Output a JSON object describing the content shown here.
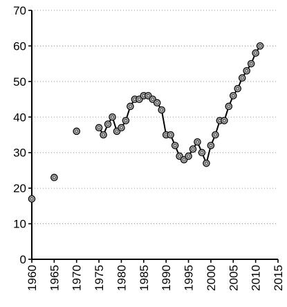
{
  "chart_data": {
    "type": "line",
    "title": "",
    "xlabel": "",
    "ylabel": "",
    "xlim": [
      1960,
      2015
    ],
    "ylim": [
      0,
      70
    ],
    "x_ticks": [
      "1960",
      "1965",
      "1970",
      "1975",
      "1980",
      "1985",
      "1990",
      "1995",
      "2000",
      "2005",
      "2010",
      "2015"
    ],
    "y_ticks": [
      "0",
      "10",
      "20",
      "30",
      "40",
      "50",
      "60",
      "70"
    ],
    "grid": "horizontal dotted",
    "legend": "none",
    "line_color": "#000000",
    "marker_fill": "#bdbdbd",
    "series": [
      {
        "isolated_points": [
          [
            1960,
            17
          ],
          [
            1965,
            23
          ],
          [
            1970,
            36
          ]
        ],
        "connected_points": [
          [
            1975,
            37
          ],
          [
            1976,
            35
          ],
          [
            1977,
            38
          ],
          [
            1978,
            40
          ],
          [
            1979,
            36
          ],
          [
            1980,
            37
          ],
          [
            1981,
            39
          ],
          [
            1982,
            43
          ],
          [
            1983,
            45
          ],
          [
            1984,
            45
          ],
          [
            1985,
            46
          ],
          [
            1986,
            46
          ],
          [
            1987,
            45
          ],
          [
            1988,
            44
          ],
          [
            1989,
            42
          ],
          [
            1990,
            35
          ],
          [
            1991,
            35
          ],
          [
            1992,
            32
          ],
          [
            1993,
            29
          ],
          [
            1994,
            28
          ],
          [
            1995,
            29
          ],
          [
            1996,
            31
          ],
          [
            1997,
            33
          ],
          [
            1998,
            30
          ],
          [
            1999,
            27
          ],
          [
            2000,
            32
          ],
          [
            2001,
            35
          ],
          [
            2002,
            39
          ],
          [
            2003,
            39
          ],
          [
            2004,
            43
          ],
          [
            2005,
            46
          ],
          [
            2006,
            48
          ],
          [
            2007,
            51
          ],
          [
            2008,
            53
          ],
          [
            2009,
            55
          ],
          [
            2010,
            58
          ],
          [
            2011,
            60
          ]
        ]
      }
    ]
  }
}
